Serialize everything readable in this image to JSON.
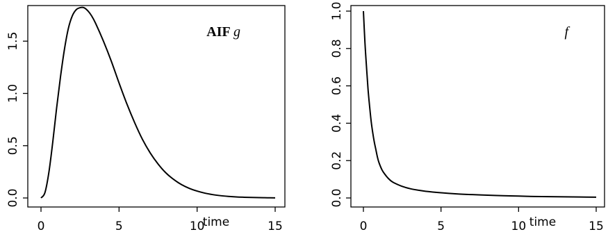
{
  "chart_data": [
    {
      "type": "line",
      "title": "",
      "annotation": {
        "label_bold": "AIF",
        "label_italic": "g"
      },
      "xlabel": "time",
      "ylabel": "",
      "xlim": [
        0,
        15
      ],
      "ylim": [
        0,
        1.85
      ],
      "xticks": [
        "0",
        "5",
        "10",
        "15"
      ],
      "yticks": [
        "0.0",
        "0.5",
        "1.0",
        "1.5"
      ],
      "grid": false,
      "series": [
        {
          "x": [
            0,
            0.25,
            0.5,
            0.75,
            1,
            1.25,
            1.5,
            1.75,
            2,
            2.25,
            2.5,
            2.75,
            3,
            3.25,
            3.5,
            4,
            4.5,
            5,
            5.5,
            6,
            6.5,
            7,
            7.5,
            8,
            8.5,
            9,
            9.5,
            10,
            10.5,
            11,
            11.5,
            12,
            12.5,
            13,
            13.5,
            14,
            14.5,
            15
          ],
          "y": [
            0,
            0.05,
            0.24,
            0.53,
            0.86,
            1.16,
            1.42,
            1.62,
            1.74,
            1.8,
            1.82,
            1.82,
            1.79,
            1.74,
            1.67,
            1.5,
            1.31,
            1.1,
            0.9,
            0.72,
            0.56,
            0.43,
            0.325,
            0.24,
            0.177,
            0.128,
            0.092,
            0.066,
            0.046,
            0.032,
            0.022,
            0.015,
            0.01,
            0.007,
            0.005,
            0.003,
            0.002,
            0.001
          ]
        }
      ]
    },
    {
      "type": "line",
      "title": "",
      "annotation": {
        "label_bold": "",
        "label_italic": "f"
      },
      "xlabel": "time",
      "ylabel": "",
      "xlim": [
        0,
        15
      ],
      "ylim": [
        0,
        1.0
      ],
      "xticks": [
        "0",
        "5",
        "10",
        "15"
      ],
      "yticks": [
        "0.0",
        "0.2",
        "0.4",
        "0.6",
        "0.8",
        "1.0"
      ],
      "grid": false,
      "series": [
        {
          "x": [
            0,
            0.1,
            0.2,
            0.3,
            0.4,
            0.5,
            0.6,
            0.7,
            0.8,
            0.9,
            1.0,
            1.2,
            1.4,
            1.6,
            1.8,
            2.0,
            2.5,
            3.0,
            3.5,
            4,
            5,
            6,
            7,
            8,
            9,
            10,
            11,
            12,
            13,
            14,
            15
          ],
          "y": [
            1.0,
            0.83,
            0.7,
            0.58,
            0.49,
            0.41,
            0.35,
            0.3,
            0.26,
            0.22,
            0.19,
            0.15,
            0.125,
            0.105,
            0.09,
            0.08,
            0.062,
            0.05,
            0.042,
            0.036,
            0.028,
            0.022,
            0.018,
            0.015,
            0.012,
            0.01,
            0.008,
            0.007,
            0.006,
            0.005,
            0.004
          ]
        }
      ]
    }
  ]
}
